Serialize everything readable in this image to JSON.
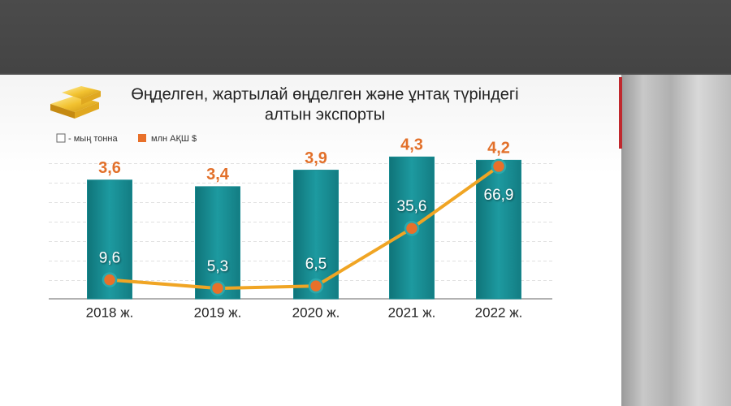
{
  "chart_data": {
    "type": "bar",
    "title": "Өңделген, жартылай өңделген және ұнтақ түріндегі",
    "subtitle": "алтын экспорты",
    "categories": [
      "2018 ж.",
      "2019 ж.",
      "2020 ж.",
      "2021 ж.",
      "2022 ж."
    ],
    "series": [
      {
        "name": "- мың тонна",
        "type": "bar",
        "color": "#178a90",
        "values": [
          3.6,
          3.4,
          3.9,
          4.3,
          4.2
        ],
        "value_labels": [
          "3,6",
          "3,4",
          "3,9",
          "4,3",
          "4,2"
        ]
      },
      {
        "name": "млн АҚШ $",
        "type": "line",
        "axis": "y2",
        "color": "#e8702a",
        "line_color": "#f0a524",
        "values": [
          9.6,
          5.3,
          6.5,
          35.6,
          66.9
        ],
        "value_labels": [
          "9,6",
          "5,3",
          "6,5",
          "35,6",
          "66,9"
        ]
      }
    ],
    "ylim": [
      0,
      4.8
    ],
    "y2lim": [
      0,
      80
    ]
  }
}
